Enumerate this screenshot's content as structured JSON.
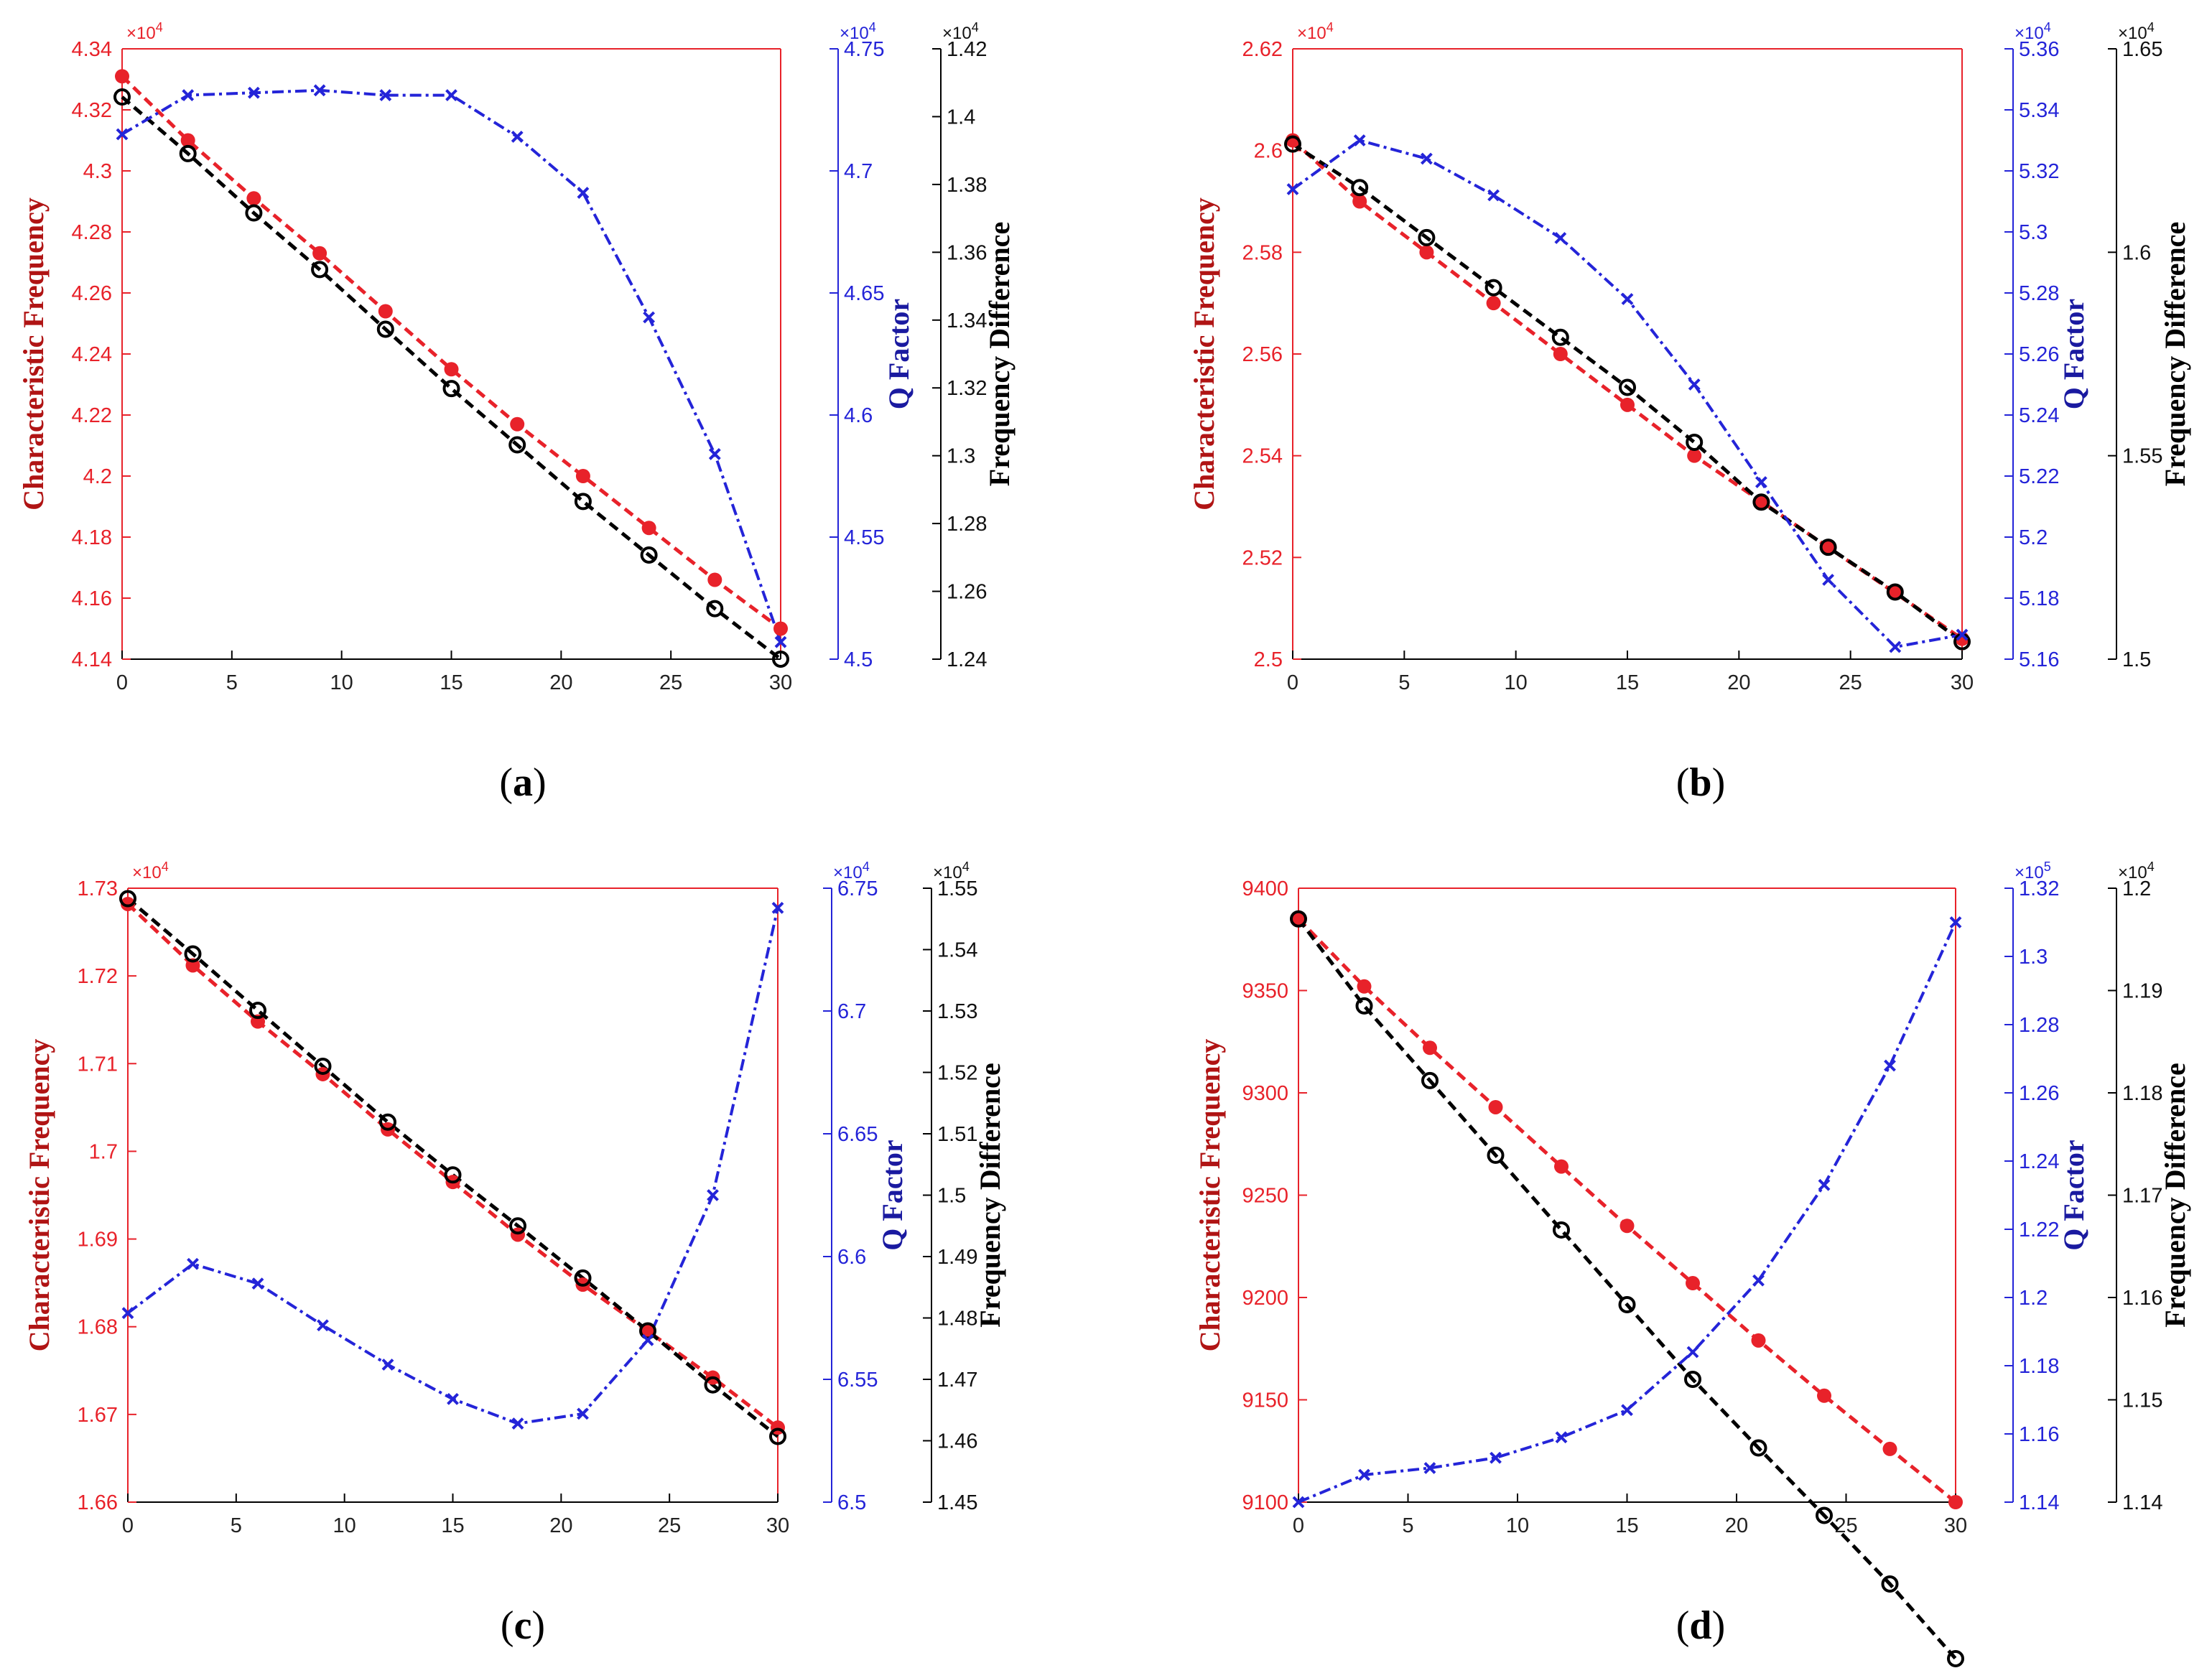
{
  "colors": {
    "red": "#e8222a",
    "blue": "#2424d8",
    "black": "#000000",
    "darkred": "#b01414",
    "navy": "#1a1aa0"
  },
  "chart_data": [
    {
      "type": "line",
      "panel_label": "a",
      "x": [
        0,
        3,
        6,
        9,
        12,
        15,
        18,
        21,
        24,
        27,
        30
      ],
      "xticks": [
        "0",
        "5",
        "10",
        "15",
        "20",
        "25",
        "30"
      ],
      "xlim": [
        0,
        30
      ],
      "left_axis": {
        "label": "Characteristic Frequency",
        "exponent": "×10",
        "exponent_power": "4",
        "ticks": [
          "4.14",
          "4.16",
          "4.18",
          "4.2",
          "4.22",
          "4.24",
          "4.26",
          "4.28",
          "4.3",
          "4.32",
          "4.34"
        ],
        "ylim": [
          4.14,
          4.34
        ]
      },
      "q_axis": {
        "label": "Q Factor",
        "exponent": "×10",
        "exponent_power": "4",
        "ticks": [
          "4.5",
          "4.55",
          "4.6",
          "4.65",
          "4.7",
          "4.75"
        ],
        "ylim": [
          4.5,
          4.75
        ]
      },
      "diff_axis": {
        "label": "Frequency Difference",
        "exponent": "×10",
        "exponent_power": "4",
        "ticks": [
          "1.24",
          "1.26",
          "1.28",
          "1.3",
          "1.32",
          "1.34",
          "1.36",
          "1.38",
          "1.4",
          "1.42"
        ],
        "ylim": [
          1.24,
          1.42
        ]
      },
      "series": [
        {
          "name": "Characteristic Frequency",
          "axis": "left",
          "values": [
            4.331,
            4.31,
            4.291,
            4.273,
            4.254,
            4.235,
            4.217,
            4.2,
            4.183,
            4.166,
            4.15
          ]
        },
        {
          "name": "Frequency Difference",
          "axis": "diff",
          "values": [
            1.4058,
            1.3891,
            1.3716,
            1.3549,
            1.3373,
            1.3198,
            1.3032,
            1.2865,
            1.2707,
            1.2549,
            1.24
          ]
        },
        {
          "name": "Q Factor",
          "axis": "q",
          "values": [
            4.715,
            4.731,
            4.732,
            4.733,
            4.731,
            4.731,
            4.714,
            4.691,
            4.64,
            4.584,
            4.507
          ]
        }
      ]
    },
    {
      "type": "line",
      "panel_label": "b",
      "x": [
        0,
        3,
        6,
        9,
        12,
        15,
        18,
        21,
        24,
        27,
        30
      ],
      "xticks": [
        "0",
        "5",
        "10",
        "15",
        "20",
        "25",
        "30"
      ],
      "xlim": [
        0,
        30
      ],
      "left_axis": {
        "label": "Characteristic Frequency",
        "exponent": "×10",
        "exponent_power": "4",
        "ticks": [
          "2.5",
          "2.52",
          "2.54",
          "2.56",
          "2.58",
          "2.6",
          "2.62"
        ],
        "ylim": [
          2.5,
          2.62
        ]
      },
      "q_axis": {
        "label": "Q Factor",
        "exponent": "×10",
        "exponent_power": "4",
        "ticks": [
          "5.16",
          "5.18",
          "5.2",
          "5.22",
          "5.24",
          "5.26",
          "5.28",
          "5.3",
          "5.32",
          "5.34",
          "5.36"
        ],
        "ylim": [
          5.16,
          5.36
        ]
      },
      "diff_axis": {
        "label": "Frequency Difference",
        "exponent": "×10",
        "exponent_power": "4",
        "ticks": [
          "1.5",
          "1.55",
          "1.6",
          "1.65"
        ],
        "ylim": [
          1.5,
          1.65
        ]
      },
      "series": [
        {
          "name": "Characteristic Frequency",
          "axis": "left",
          "values": [
            2.602,
            2.59,
            2.58,
            2.57,
            2.56,
            2.55,
            2.54,
            2.531,
            2.522,
            2.513,
            2.504
          ]
        },
        {
          "name": "Frequency Difference",
          "axis": "diff",
          "values": [
            1.6266,
            1.6159,
            1.6036,
            1.5913,
            1.5791,
            1.5668,
            1.5533,
            1.5386,
            1.5275,
            1.5165,
            1.5043
          ]
        },
        {
          "name": "Q Factor",
          "axis": "q",
          "values": [
            5.314,
            5.33,
            5.324,
            5.312,
            5.298,
            5.278,
            5.25,
            5.218,
            5.186,
            5.164,
            5.168
          ]
        }
      ]
    },
    {
      "type": "line",
      "panel_label": "c",
      "x": [
        0,
        3,
        6,
        9,
        12,
        15,
        18,
        21,
        24,
        27,
        30
      ],
      "xticks": [
        "0",
        "5",
        "10",
        "15",
        "20",
        "25",
        "30"
      ],
      "xlim": [
        0,
        30
      ],
      "left_axis": {
        "label": "Characteristic Frequency",
        "exponent": "×10",
        "exponent_power": "4",
        "ticks": [
          "1.66",
          "1.67",
          "1.68",
          "1.69",
          "1.7",
          "1.71",
          "1.72",
          "1.73"
        ],
        "ylim": [
          1.66,
          1.73
        ]
      },
      "q_axis": {
        "label": "Q Factor",
        "exponent": "×10",
        "exponent_power": "4",
        "ticks": [
          "6.5",
          "6.55",
          "6.6",
          "6.65",
          "6.7",
          "6.75"
        ],
        "ylim": [
          6.5,
          6.75
        ]
      },
      "diff_axis": {
        "label": "Frequency Difference",
        "exponent": "×10",
        "exponent_power": "4",
        "ticks": [
          "1.45",
          "1.46",
          "1.47",
          "1.48",
          "1.49",
          "1.5",
          "1.51",
          "1.52",
          "1.53",
          "1.54",
          "1.55"
        ],
        "ylim": [
          1.45,
          1.55
        ]
      },
      "series": [
        {
          "name": "Characteristic Frequency",
          "axis": "left",
          "values": [
            1.7282,
            1.7212,
            1.7148,
            1.7088,
            1.7025,
            1.6965,
            1.6905,
            1.6848,
            1.6795,
            1.6742,
            1.6685
          ]
        },
        {
          "name": "Frequency Difference",
          "axis": "diff",
          "values": [
            1.5483,
            1.5393,
            1.5301,
            1.521,
            1.5119,
            1.5033,
            1.495,
            1.4865,
            1.4779,
            1.4691,
            1.4607
          ]
        },
        {
          "name": "Q Factor",
          "axis": "q",
          "values": [
            6.577,
            6.597,
            6.589,
            6.572,
            6.556,
            6.542,
            6.532,
            6.536,
            6.566,
            6.625,
            6.742
          ]
        }
      ]
    },
    {
      "type": "line",
      "panel_label": "d",
      "x": [
        0,
        3,
        6,
        9,
        12,
        15,
        18,
        21,
        24,
        27,
        30
      ],
      "xticks": [
        "0",
        "5",
        "10",
        "15",
        "20",
        "25",
        "30"
      ],
      "xlim": [
        0,
        30
      ],
      "left_axis": {
        "label": "Characteristic Frequency",
        "exponent": "",
        "exponent_power": "",
        "ticks": [
          "9100",
          "9150",
          "9200",
          "9250",
          "9300",
          "9350",
          "9400"
        ],
        "ylim": [
          9100,
          9400
        ]
      },
      "q_axis": {
        "label": "Q Factor",
        "exponent": "×10",
        "exponent_power": "5",
        "ticks": [
          "1.14",
          "1.16",
          "1.18",
          "1.2",
          "1.22",
          "1.24",
          "1.26",
          "1.28",
          "1.3",
          "1.32"
        ],
        "ylim": [
          1.14,
          1.32
        ]
      },
      "diff_axis": {
        "label": "Frequency Difference",
        "exponent": "×10",
        "exponent_power": "4",
        "ticks": [
          "1.14",
          "1.15",
          "1.16",
          "1.17",
          "1.18",
          "1.19",
          "1.2"
        ],
        "ylim": [
          1.14,
          1.2
        ]
      },
      "series": [
        {
          "name": "Characteristic Frequency",
          "axis": "left",
          "values": [
            9385,
            9352,
            9322,
            9293,
            9264,
            9235,
            9207,
            9179,
            9152,
            9126,
            9100
          ]
        },
        {
          "name": "Frequency Difference",
          "axis": "diff",
          "values": [
            1.197,
            1.1885,
            1.1812,
            1.1739,
            1.1666,
            1.1593,
            1.152,
            1.1453,
            1.1387,
            1.132,
            1.1247
          ]
        },
        {
          "name": "Q Factor",
          "axis": "q",
          "values": [
            1.14,
            1.148,
            1.15,
            1.153,
            1.159,
            1.167,
            1.184,
            1.205,
            1.233,
            1.268,
            1.31
          ]
        }
      ]
    }
  ]
}
